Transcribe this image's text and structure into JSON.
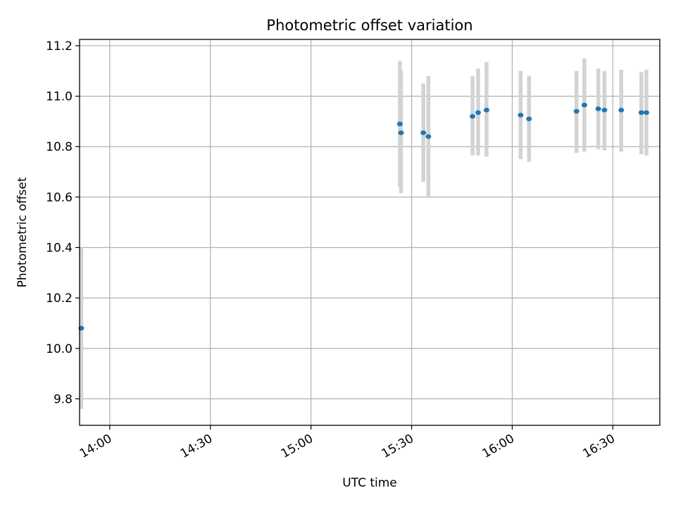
{
  "chart_data": {
    "type": "scatter",
    "title": "Photometric offset variation",
    "xlabel": "UTC time",
    "ylabel": "Photometric offset",
    "x_axis_type": "time",
    "xlim": [
      "13:51",
      "16:44"
    ],
    "ylim": [
      9.695,
      11.225
    ],
    "x_ticks": [
      "14:00",
      "14:30",
      "15:00",
      "15:30",
      "16:00",
      "16:30"
    ],
    "y_ticks": [
      "9.8",
      "10.0",
      "10.2",
      "10.4",
      "10.6",
      "10.8",
      "11.0",
      "11.2"
    ],
    "grid": true,
    "colors": {
      "point": "#1f77b4",
      "errorbar": "#d3d3d3",
      "grid": "#b0b0b0"
    },
    "series": [
      {
        "points": [
          {
            "x": "13:51:30",
            "y": 10.08,
            "ylow": 9.76,
            "yhigh": 10.4
          },
          {
            "x": "15:26:30",
            "y": 10.89,
            "ylow": 10.64,
            "yhigh": 11.14
          },
          {
            "x": "15:26:50",
            "y": 10.855,
            "ylow": 10.615,
            "yhigh": 11.1
          },
          {
            "x": "15:33:30",
            "y": 10.855,
            "ylow": 10.66,
            "yhigh": 11.05
          },
          {
            "x": "15:35:00",
            "y": 10.84,
            "ylow": 10.6,
            "yhigh": 11.08
          },
          {
            "x": "15:48:10",
            "y": 10.92,
            "ylow": 10.765,
            "yhigh": 11.08
          },
          {
            "x": "15:49:50",
            "y": 10.935,
            "ylow": 10.765,
            "yhigh": 11.11
          },
          {
            "x": "15:52:20",
            "y": 10.945,
            "ylow": 10.76,
            "yhigh": 11.135
          },
          {
            "x": "16:02:30",
            "y": 10.925,
            "ylow": 10.75,
            "yhigh": 11.1
          },
          {
            "x": "16:05:00",
            "y": 10.91,
            "ylow": 10.74,
            "yhigh": 11.08
          },
          {
            "x": "16:19:10",
            "y": 10.94,
            "ylow": 10.775,
            "yhigh": 11.1
          },
          {
            "x": "16:21:30",
            "y": 10.965,
            "ylow": 10.78,
            "yhigh": 11.15
          },
          {
            "x": "16:25:40",
            "y": 10.95,
            "ylow": 10.79,
            "yhigh": 11.11
          },
          {
            "x": "16:27:30",
            "y": 10.945,
            "ylow": 10.785,
            "yhigh": 11.1
          },
          {
            "x": "16:32:30",
            "y": 10.945,
            "ylow": 10.78,
            "yhigh": 11.105
          },
          {
            "x": "16:38:30",
            "y": 10.935,
            "ylow": 10.77,
            "yhigh": 11.095
          },
          {
            "x": "16:40:00",
            "y": 10.935,
            "ylow": 10.765,
            "yhigh": 11.105
          }
        ]
      }
    ]
  }
}
